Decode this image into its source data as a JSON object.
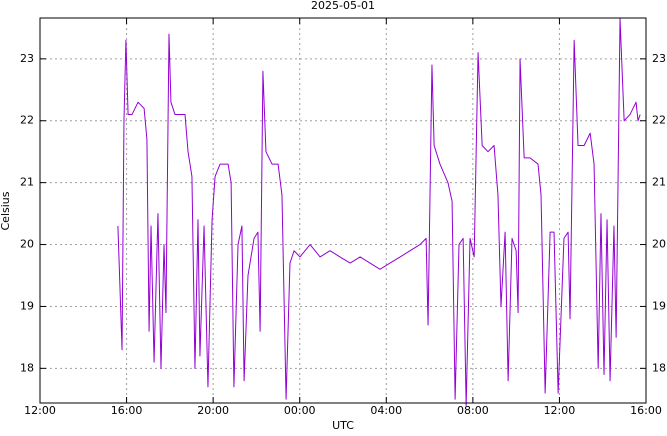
{
  "chart_data": {
    "type": "line",
    "title": "2025-05-01",
    "x_label": "UTC",
    "y_label": "Celsius",
    "x": [
      3.6,
      3.79,
      3.88,
      3.97,
      4.07,
      4.25,
      4.53,
      4.81,
      4.94,
      5.04,
      5.13,
      5.27,
      5.45,
      5.59,
      5.73,
      5.82,
      5.96,
      6.05,
      6.24,
      6.7,
      6.84,
      7.02,
      7.16,
      7.3,
      7.39,
      7.58,
      7.76,
      7.95,
      8.09,
      8.32,
      8.69,
      8.83,
      8.96,
      9.15,
      9.33,
      9.43,
      9.61,
      9.89,
      10.07,
      10.17,
      10.3,
      10.44,
      10.72,
      11.0,
      11.18,
      11.37,
      11.55,
      11.74,
      12.01,
      12.48,
      12.94,
      13.4,
      13.86,
      14.33,
      14.79,
      15.25,
      15.71,
      16.17,
      16.64,
      17.1,
      17.56,
      17.84,
      17.93,
      18.11,
      18.21,
      18.48,
      18.85,
      19.04,
      19.18,
      19.36,
      19.55,
      19.69,
      19.87,
      20.06,
      20.24,
      20.43,
      20.7,
      20.98,
      21.16,
      21.3,
      21.49,
      21.63,
      21.81,
      22.0,
      22.09,
      22.18,
      22.37,
      22.64,
      23.01,
      23.15,
      23.34,
      23.57,
      23.75,
      23.94,
      24.21,
      24.4,
      24.49,
      24.68,
      24.86,
      25.14,
      25.42,
      25.6,
      25.79,
      25.92,
      26.06,
      26.2,
      26.34,
      26.52,
      26.62,
      26.8,
      26.99,
      27.26,
      27.54,
      27.63,
      27.73
    ],
    "values": [
      20.3,
      18.3,
      22.0,
      23.3,
      22.1,
      22.1,
      22.3,
      22.2,
      21.7,
      18.6,
      20.3,
      18.1,
      20.5,
      18.0,
      20.0,
      18.9,
      23.4,
      22.3,
      22.1,
      22.1,
      21.5,
      21.1,
      18.0,
      20.4,
      18.2,
      20.3,
      17.7,
      20.4,
      21.1,
      21.3,
      21.3,
      21.0,
      17.7,
      20.0,
      20.3,
      17.8,
      19.5,
      20.1,
      20.2,
      18.6,
      22.8,
      21.5,
      21.3,
      21.3,
      20.8,
      17.5,
      19.7,
      19.9,
      19.8,
      20.0,
      19.8,
      19.9,
      19.8,
      19.7,
      19.8,
      19.7,
      19.6,
      19.7,
      19.8,
      19.9,
      20.0,
      20.1,
      18.7,
      22.9,
      21.6,
      21.3,
      21.0,
      20.7,
      17.5,
      20.0,
      20.1,
      17.4,
      20.1,
      19.8,
      23.1,
      21.6,
      21.5,
      21.6,
      20.8,
      19.0,
      20.2,
      17.8,
      20.1,
      19.9,
      18.9,
      23.0,
      21.4,
      21.4,
      21.3,
      20.8,
      17.6,
      20.2,
      20.2,
      17.6,
      20.1,
      20.2,
      18.8,
      23.3,
      21.6,
      21.6,
      21.8,
      21.3,
      18.0,
      20.5,
      17.9,
      20.4,
      17.8,
      20.3,
      18.5,
      23.65,
      22.0,
      22.1,
      22.3,
      22.0,
      22.1
    ],
    "color": "#9400d3",
    "xlim": [
      0,
      28
    ],
    "xticks": [
      {
        "value": 0,
        "label": "12:00"
      },
      {
        "value": 4,
        "label": "16:00"
      },
      {
        "value": 8,
        "label": "20:00"
      },
      {
        "value": 12,
        "label": "00:00"
      },
      {
        "value": 16,
        "label": "04:00"
      },
      {
        "value": 20,
        "label": "08:00"
      },
      {
        "value": 24,
        "label": "12:00"
      },
      {
        "value": 28,
        "label": "16:00"
      }
    ],
    "ylim": [
      17.44,
      23.66
    ],
    "yticks": [
      18,
      19,
      20,
      21,
      22,
      23
    ],
    "grid": true
  }
}
